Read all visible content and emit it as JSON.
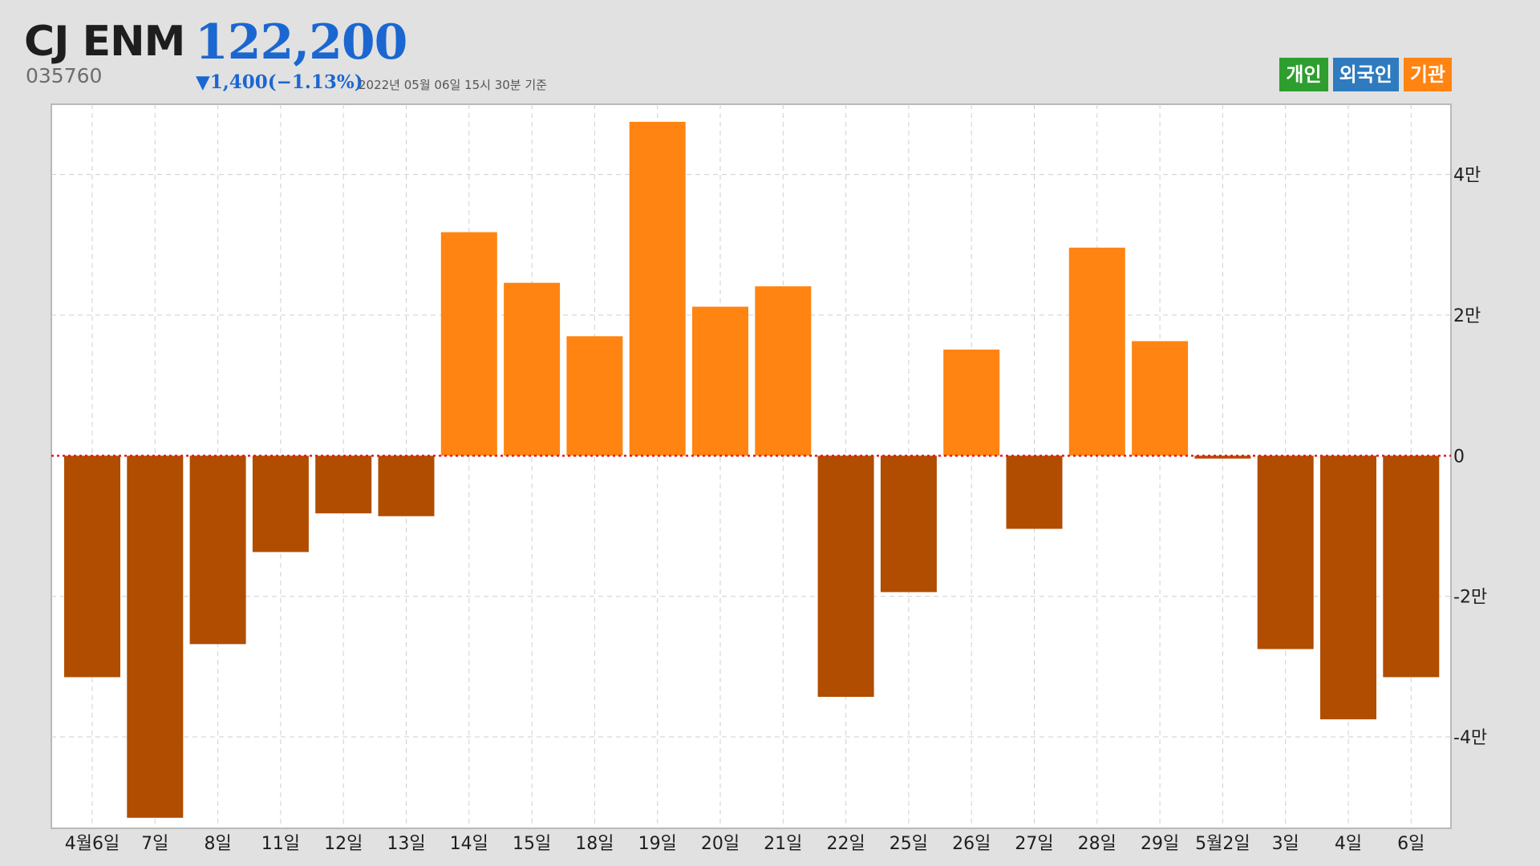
{
  "header": {
    "name": "CJ ENM",
    "code": "035760",
    "price": "122,200",
    "change": "▼1,400(−1.13%)",
    "timestamp": "2022년 05월 06일 15시 30분 기준",
    "price_color": "#1b67d1"
  },
  "legend": [
    {
      "label": "개인",
      "color": "#2e9e2e"
    },
    {
      "label": "외국인",
      "color": "#2f7bbf"
    },
    {
      "label": "기관",
      "color": "#ff8412"
    }
  ],
  "chart_data": {
    "type": "bar",
    "categories": [
      "4월6일",
      "7일",
      "8일",
      "11일",
      "12일",
      "13일",
      "14일",
      "15일",
      "18일",
      "19일",
      "20일",
      "21일",
      "22일",
      "25일",
      "26일",
      "27일",
      "28일",
      "29일",
      "5월2일",
      "3일",
      "4일",
      "6일"
    ],
    "series": [
      {
        "name": "기관",
        "values": [
          -31500,
          -51500,
          -26800,
          -13700,
          -8200,
          -8600,
          31800,
          24600,
          17000,
          47500,
          21200,
          24100,
          -34300,
          -19400,
          15100,
          -10400,
          29600,
          16300,
          -400,
          -27500,
          -37500,
          -31500
        ]
      }
    ],
    "ylim": [
      -53000,
      50000
    ],
    "yticks": [
      -40000,
      -20000,
      0,
      20000,
      40000
    ],
    "ytick_labels": [
      "-4만",
      "-2만",
      "0",
      "2만",
      "4만"
    ],
    "positive_color": "#ff8412",
    "negative_color": "#b04d00",
    "zero_line_color": "#e41a1a",
    "grid": true,
    "xlabel": "",
    "ylabel": ""
  }
}
